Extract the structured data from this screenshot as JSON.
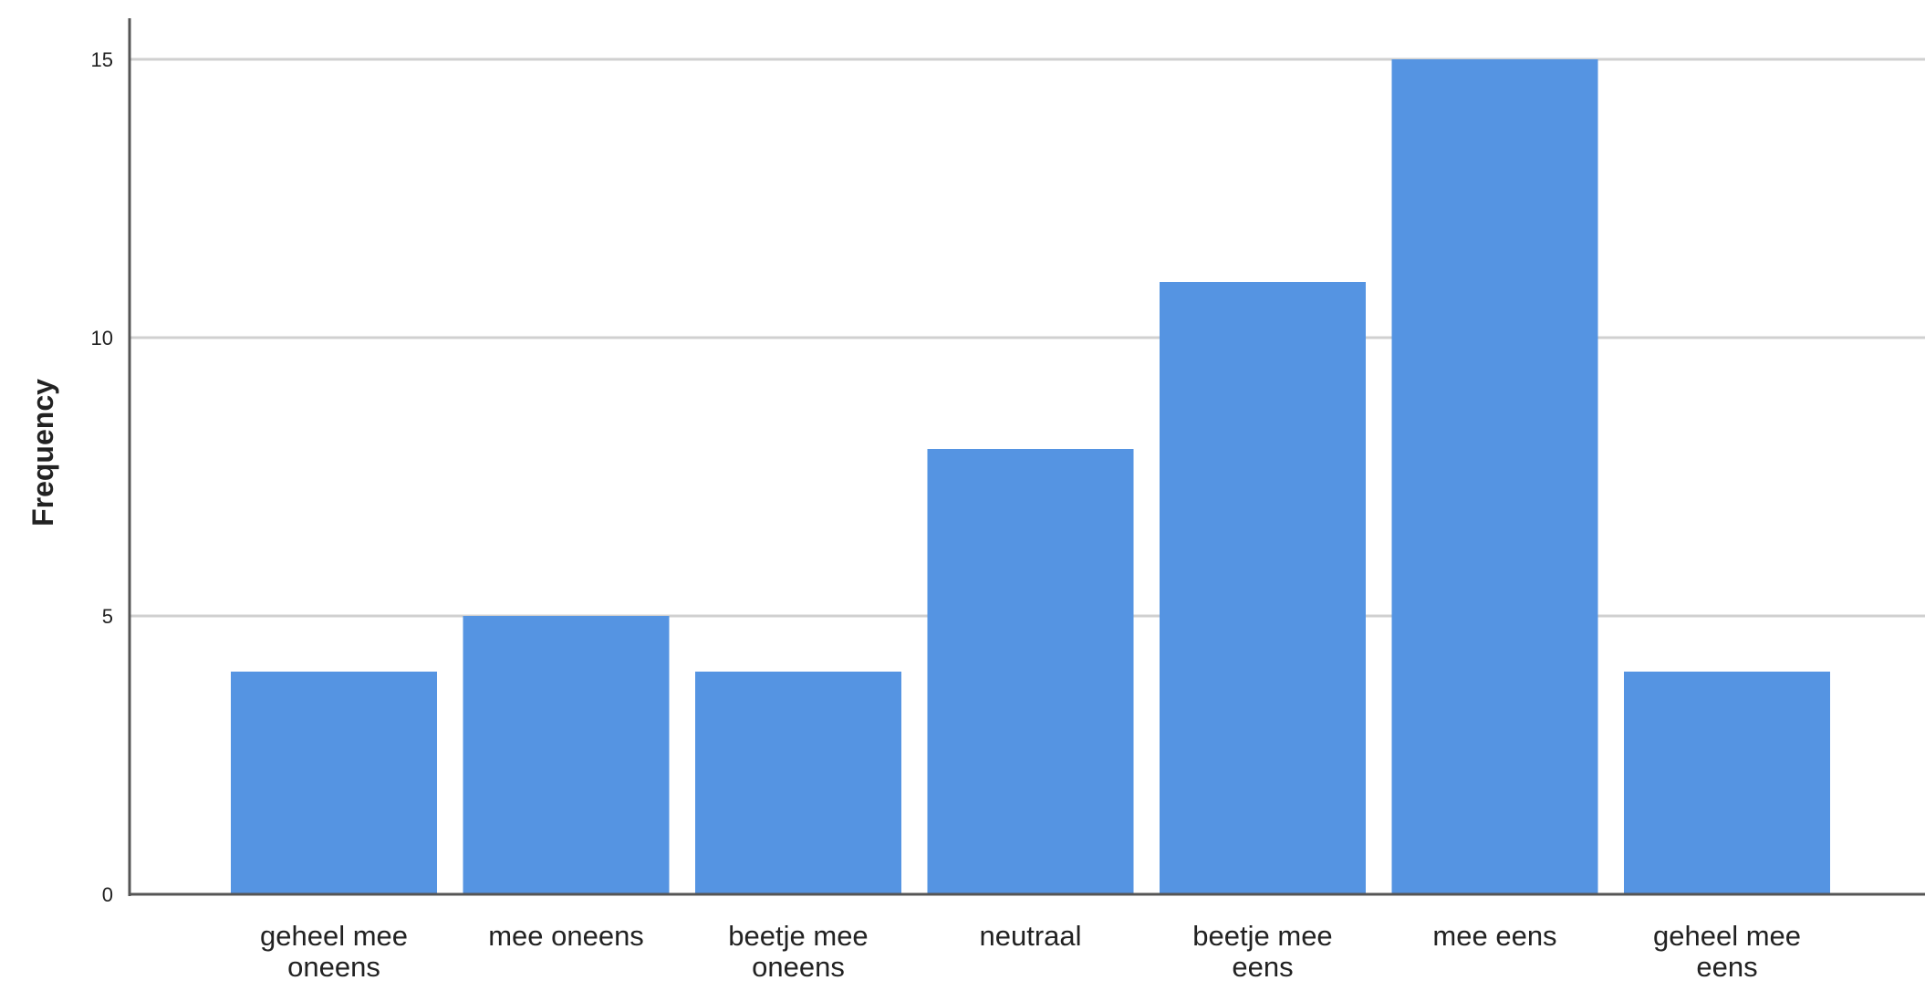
{
  "chart_data": {
    "type": "bar",
    "title": "",
    "xlabel": "",
    "ylabel": "Frequency",
    "categories": [
      [
        "geheel mee",
        "oneens"
      ],
      [
        "mee oneens"
      ],
      [
        "beetje mee",
        "oneens"
      ],
      [
        "neutraal"
      ],
      [
        "beetje mee",
        "eens"
      ],
      [
        "mee eens"
      ],
      [
        "geheel mee",
        "eens"
      ]
    ],
    "values": [
      4,
      5,
      4,
      8,
      11,
      15,
      4
    ],
    "ylim": [
      0,
      16
    ],
    "yticks": [
      0,
      5,
      10,
      15
    ],
    "grid": true,
    "legend": "none",
    "colors": {
      "bar": "#5594e2",
      "grid": "#d0d0d0",
      "axis": "#555555",
      "text": "#222222"
    }
  }
}
